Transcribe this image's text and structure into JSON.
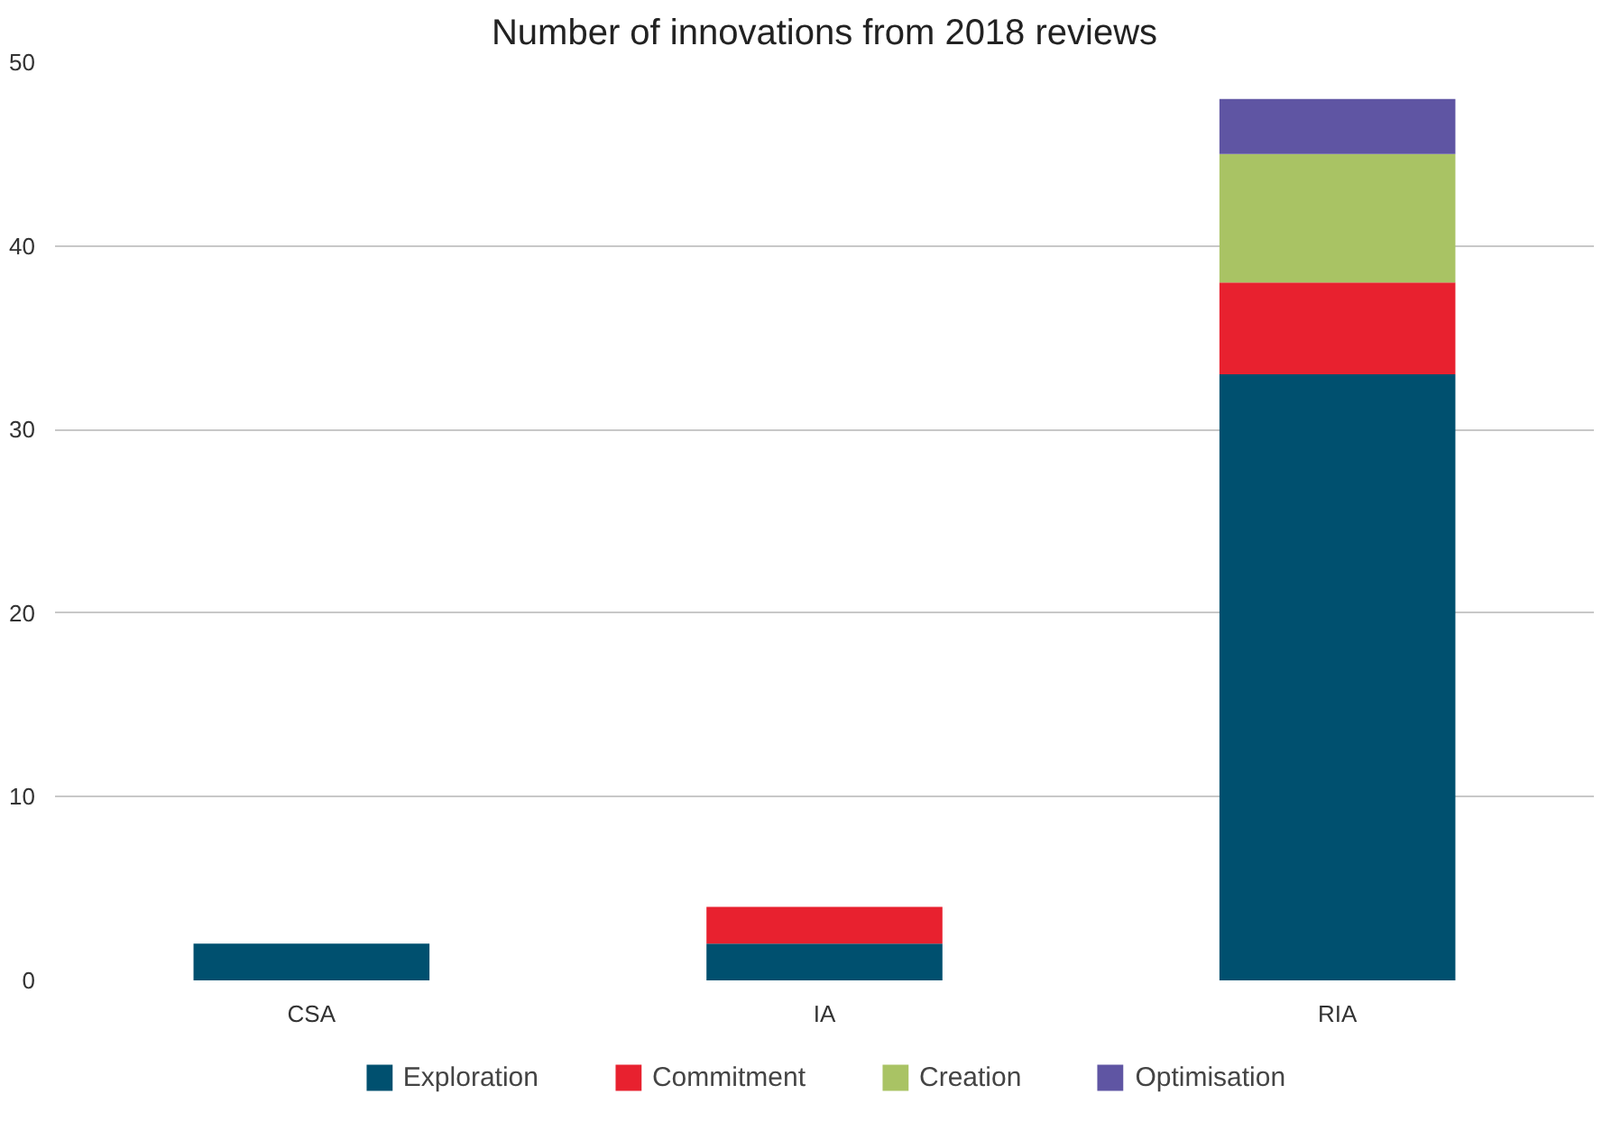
{
  "chart_data": {
    "type": "bar",
    "title": "Number of innovations from 2018 reviews",
    "categories": [
      "CSA",
      "IA",
      "RIA"
    ],
    "stacked": true,
    "series": [
      {
        "name": "Exploration",
        "color": "#00506f",
        "values": [
          2,
          2,
          33
        ]
      },
      {
        "name": "Commitment",
        "color": "#e8212f",
        "values": [
          0,
          2,
          5
        ]
      },
      {
        "name": "Creation",
        "color": "#a9c364",
        "values": [
          0,
          0,
          7
        ]
      },
      {
        "name": "Optimisation",
        "color": "#5f55a3",
        "values": [
          0,
          0,
          3
        ]
      }
    ],
    "ylim": [
      0,
      50
    ],
    "yticks": [
      0,
      10,
      20,
      30,
      40,
      50
    ],
    "grid": "y",
    "legend": "bottom"
  }
}
